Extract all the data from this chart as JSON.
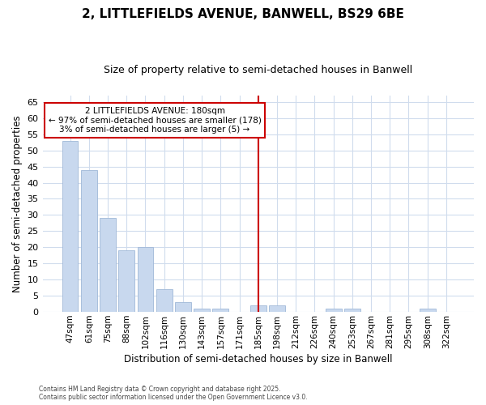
{
  "title1": "2, LITTLEFIELDS AVENUE, BANWELL, BS29 6BE",
  "title2": "Size of property relative to semi-detached houses in Banwell",
  "xlabel": "Distribution of semi-detached houses by size in Banwell",
  "ylabel": "Number of semi-detached properties",
  "categories": [
    "47sqm",
    "61sqm",
    "75sqm",
    "88sqm",
    "102sqm",
    "116sqm",
    "130sqm",
    "143sqm",
    "157sqm",
    "171sqm",
    "185sqm",
    "198sqm",
    "212sqm",
    "226sqm",
    "240sqm",
    "253sqm",
    "267sqm",
    "281sqm",
    "295sqm",
    "308sqm",
    "322sqm"
  ],
  "values": [
    53,
    44,
    29,
    19,
    20,
    7,
    3,
    1,
    1,
    0,
    2,
    2,
    0,
    0,
    1,
    1,
    0,
    0,
    0,
    1,
    0
  ],
  "bar_color": "#c8d8ee",
  "bar_edge_color": "#a0b8d8",
  "highlight_index": 10,
  "vline_x": 10,
  "vline_color": "#cc0000",
  "annotation_title": "2 LITTLEFIELDS AVENUE: 180sqm",
  "annotation_line1": "← 97% of semi-detached houses are smaller (178)",
  "annotation_line2": "3% of semi-detached houses are larger (5) →",
  "annotation_box_color": "#cc0000",
  "ylim": [
    0,
    67
  ],
  "yticks": [
    0,
    5,
    10,
    15,
    20,
    25,
    30,
    35,
    40,
    45,
    50,
    55,
    60,
    65
  ],
  "background_color": "#ffffff",
  "grid_color": "#d0dced",
  "footer1": "Contains HM Land Registry data © Crown copyright and database right 2025.",
  "footer2": "Contains public sector information licensed under the Open Government Licence v3.0."
}
